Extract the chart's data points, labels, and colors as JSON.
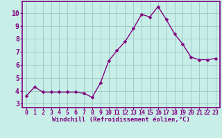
{
  "x": [
    0,
    1,
    2,
    3,
    4,
    5,
    6,
    7,
    8,
    9,
    10,
    11,
    12,
    13,
    14,
    15,
    16,
    17,
    18,
    19,
    20,
    21,
    22,
    23
  ],
  "y": [
    3.6,
    4.3,
    3.9,
    3.9,
    3.9,
    3.9,
    3.9,
    3.8,
    3.5,
    4.6,
    6.3,
    7.1,
    7.8,
    8.8,
    9.9,
    9.7,
    10.5,
    9.5,
    8.4,
    7.6,
    6.6,
    6.4,
    6.4,
    6.5
  ],
  "line_color": "#800080",
  "marker": "D",
  "marker_size": 2.5,
  "bg_color": "#c8eee8",
  "grid_color": "#a0ccc4",
  "ylabel_ticks": [
    3,
    4,
    5,
    6,
    7,
    8,
    9,
    10
  ],
  "xlabel": "Windchill (Refroidissement éolien,°C)",
  "xlim": [
    -0.5,
    23.5
  ],
  "ylim": [
    2.7,
    10.9
  ],
  "xtick_labels": [
    "0",
    "1",
    "2",
    "3",
    "4",
    "5",
    "6",
    "7",
    "8",
    "9",
    "10",
    "11",
    "12",
    "13",
    "14",
    "15",
    "16",
    "17",
    "18",
    "19",
    "20",
    "21",
    "22",
    "23"
  ],
  "spine_color": "#800080",
  "label_color": "#800080",
  "tick_color": "#800080",
  "xlabel_fontsize": 6.5,
  "ylabel_fontsize": 7,
  "tick_fontsize": 6
}
